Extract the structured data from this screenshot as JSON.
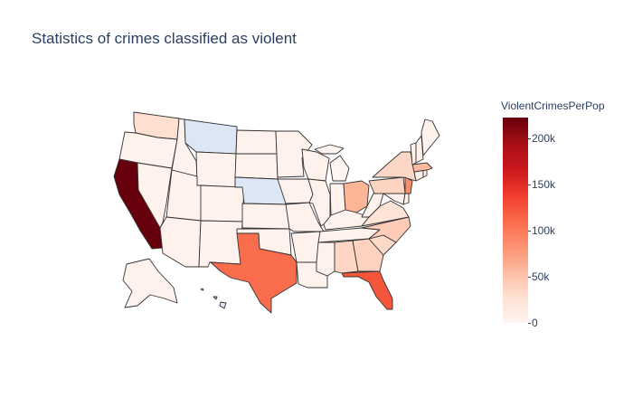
{
  "title": "Statistics of crimes classified as violent",
  "colorbar": {
    "title": "ViolentCrimesPerPop",
    "max": 225000,
    "ticks": [
      "0",
      "50k",
      "100k",
      "150k",
      "200k"
    ],
    "tick_values": [
      0,
      50000,
      100000,
      150000,
      200000
    ],
    "colorscale": [
      "#fff5f0",
      "#fee0d2",
      "#fcbba1",
      "#fc9272",
      "#fb6a4a",
      "#ef3b2c",
      "#cb181d",
      "#a50f15",
      "#67000d"
    ]
  },
  "colors": {
    "border": "#333333",
    "no_data": "#dde6f4",
    "low": "#fff1eb",
    "light": "#fde2d6"
  },
  "states": {
    "CA": "#67000d",
    "FL": "#f4553b",
    "TX": "#f96d4d",
    "NJ": "#f98e6f",
    "OH": "#fcb597",
    "MA": "#fcbba1",
    "NC": "#fdcbb6",
    "PA": "#fdd4c2",
    "NY": "#fdd7c6",
    "GA": "#fdd3c0",
    "AL": "#fdd6c4",
    "SC": "#fdd9ca",
    "WA": "#fde0d2",
    "VA": "#fee3d7",
    "MI": "#fff5f0",
    "NE": "#dde6f4",
    "MT": "#dde6f4",
    "HI": "#dde6f4"
  }
}
